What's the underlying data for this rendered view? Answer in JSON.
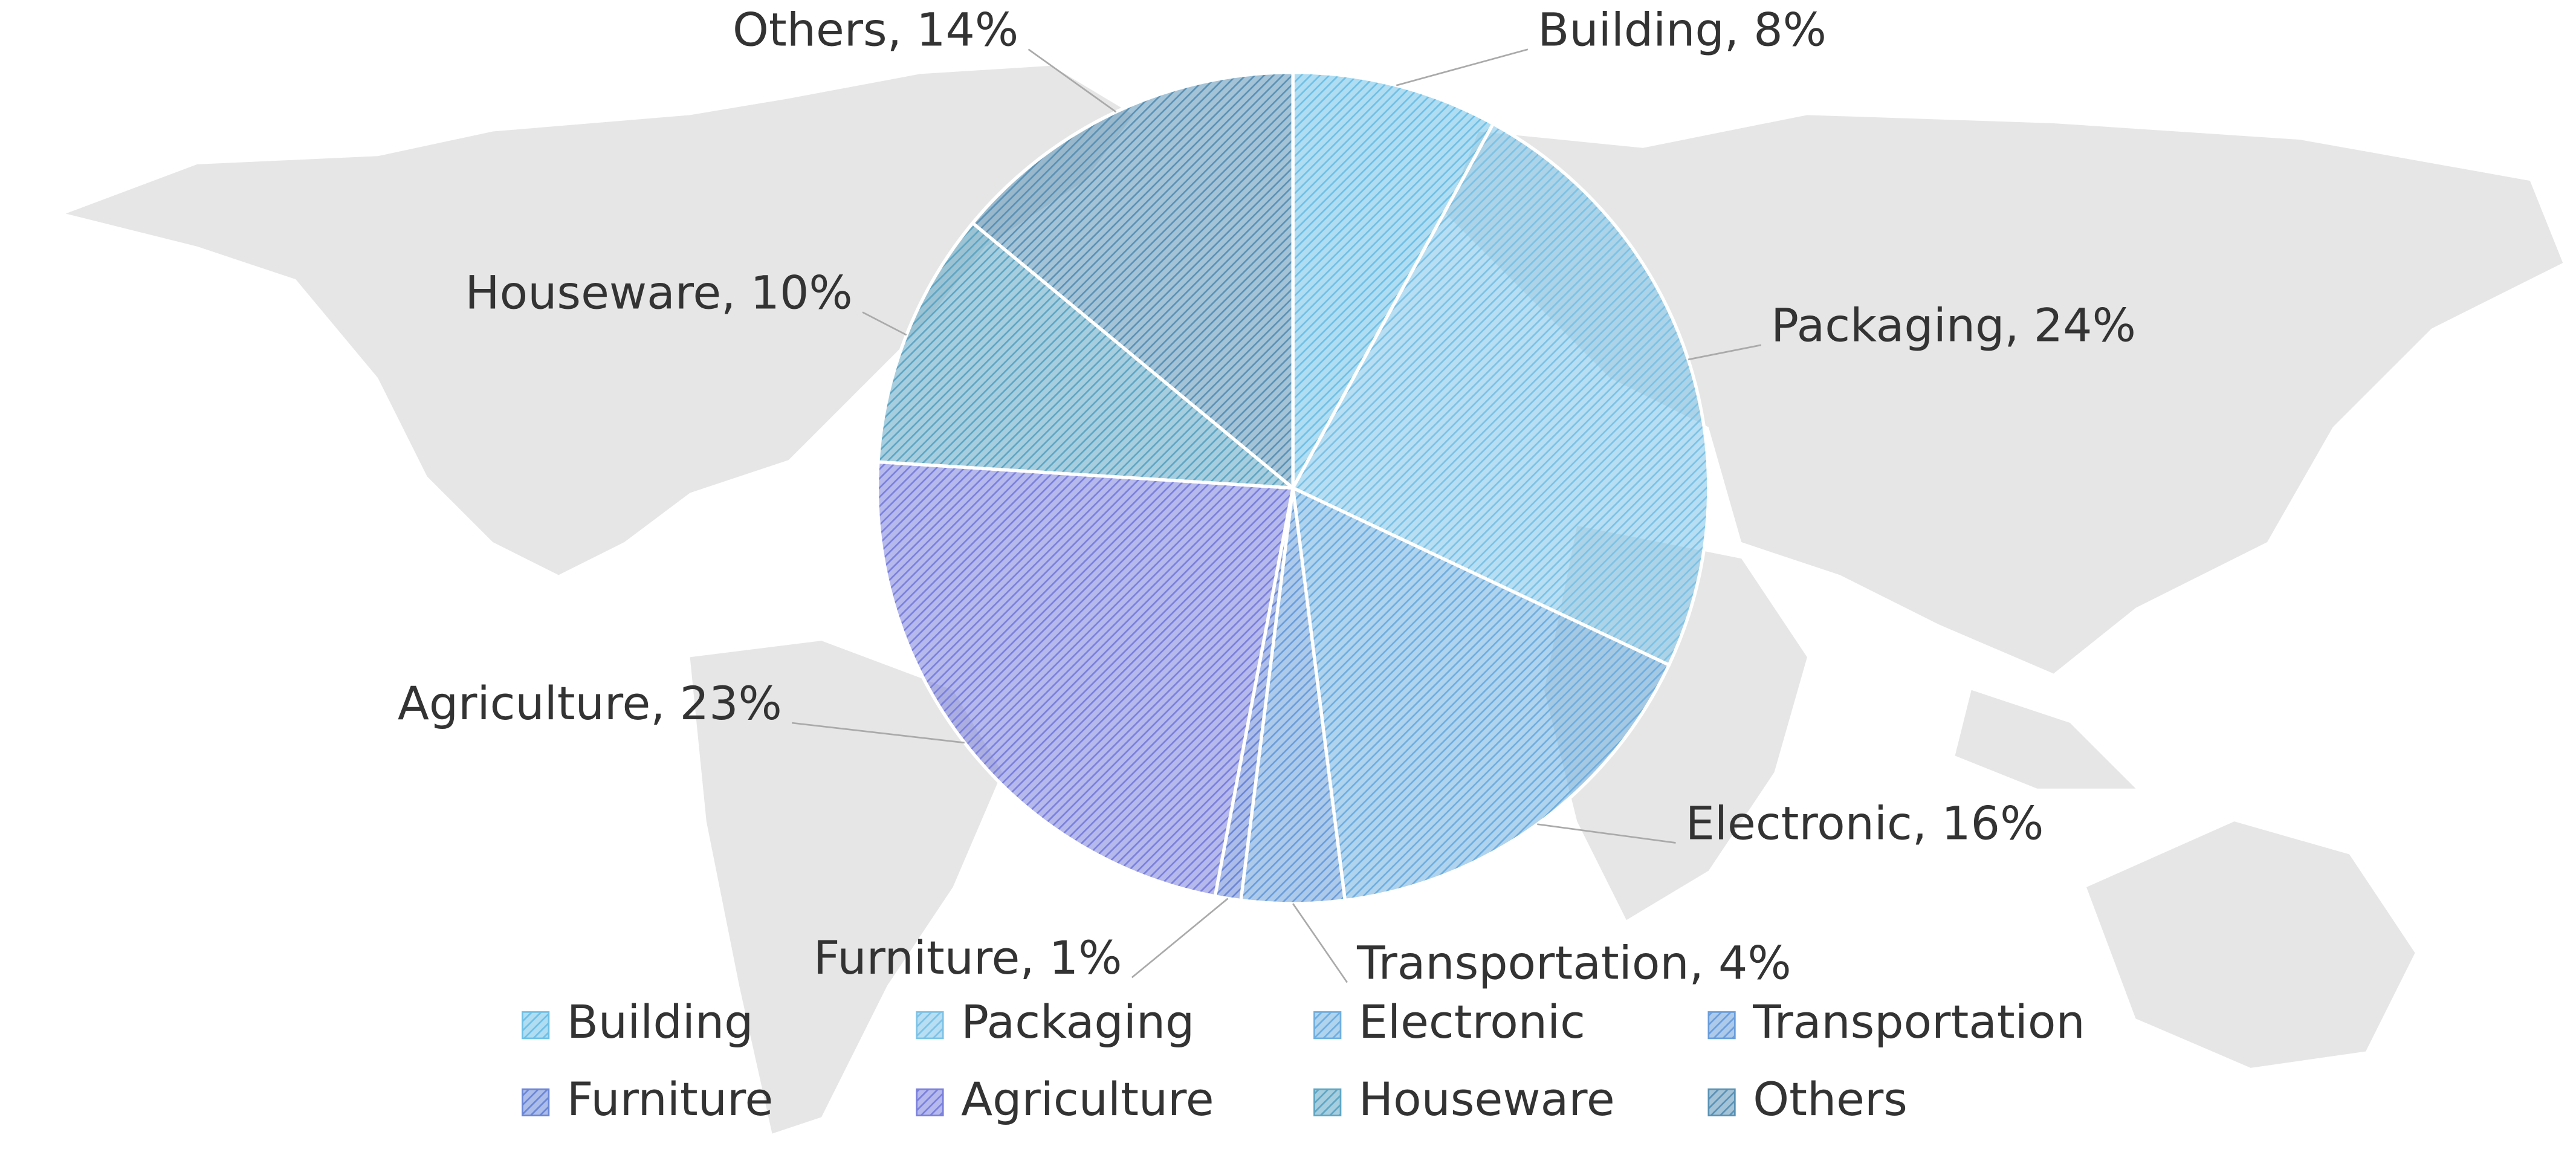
{
  "chart_data": {
    "type": "pie",
    "categories": [
      "Building",
      "Packaging",
      "Electronic",
      "Transportation",
      "Furniture",
      "Agriculture",
      "Houseware",
      "Others"
    ],
    "values": [
      8,
      24,
      16,
      4,
      1,
      23,
      10,
      14
    ],
    "value_labels": [
      "Building, 8%",
      "Packaging, 24%",
      "Electronic, 16%",
      "Transportation, 4%",
      "Furniture, 1%",
      "Agriculture, 23%",
      "Houseware, 10%",
      "Others, 14%"
    ],
    "colors": [
      "#6fc0e6",
      "#7cc2e6",
      "#6eaee0",
      "#6a9edb",
      "#6a86d6",
      "#7a80dc",
      "#5ea6c4",
      "#5a92b6"
    ],
    "legend": "bottom"
  }
}
